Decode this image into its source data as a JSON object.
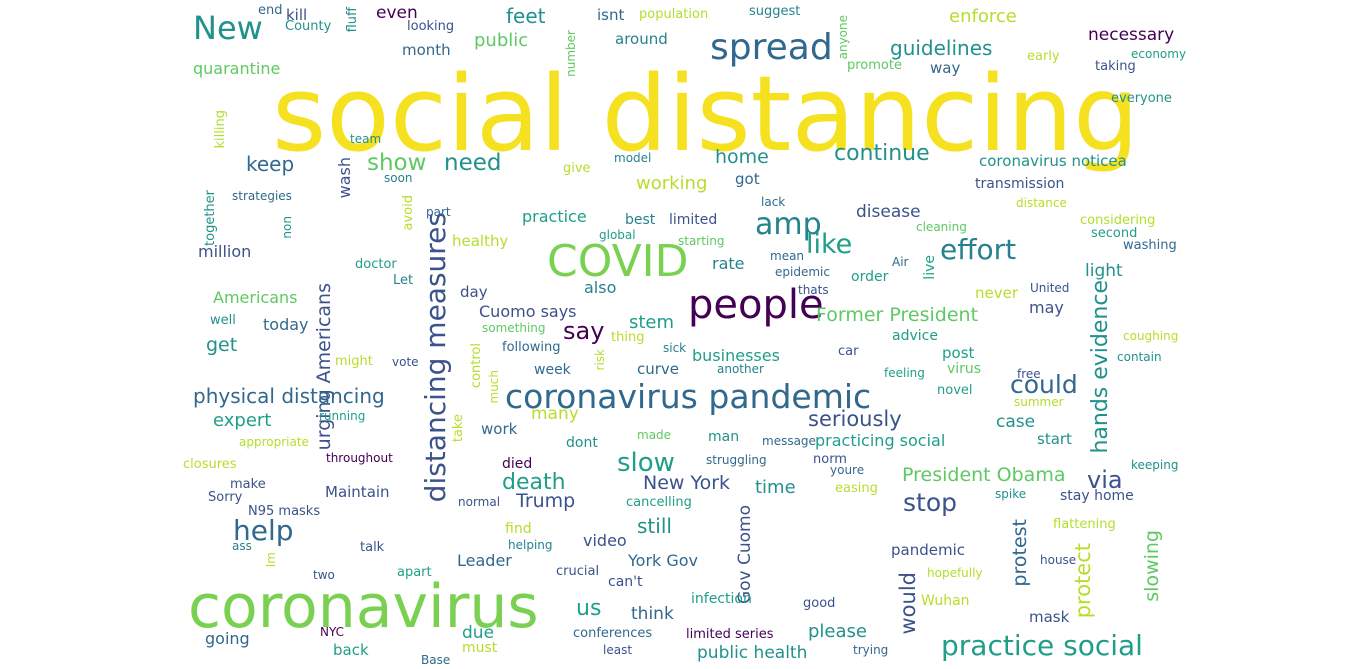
{
  "words": [
    {
      "t": "social distancing",
      "c": "#f5e11f"
    },
    {
      "t": "coronavirus",
      "c": "#7ad151"
    },
    {
      "t": "COVID",
      "c": "#7ad151"
    },
    {
      "t": "people",
      "c": "#440154"
    },
    {
      "t": "coronavirus pandemic",
      "c": "#31688e"
    },
    {
      "t": "distancing measures",
      "c": "#3b528b"
    },
    {
      "t": "spread",
      "c": "#31688e"
    },
    {
      "t": "New",
      "c": "#21918c"
    },
    {
      "t": "practice social",
      "c": "#1f9e89"
    },
    {
      "t": "amp",
      "c": "#26828e"
    },
    {
      "t": "effort",
      "c": "#26828e"
    },
    {
      "t": "like",
      "c": "#1f9e89"
    },
    {
      "t": "help",
      "c": "#31688e"
    },
    {
      "t": "slow",
      "c": "#1f9e89"
    },
    {
      "t": "stop",
      "c": "#3b528b"
    },
    {
      "t": "could",
      "c": "#31688e"
    },
    {
      "t": "continue",
      "c": "#21918c"
    },
    {
      "t": "show",
      "c": "#5ec962"
    },
    {
      "t": "need",
      "c": "#21918c"
    },
    {
      "t": "say",
      "c": "#440154"
    },
    {
      "t": "death",
      "c": "#1f9e89"
    },
    {
      "t": "via",
      "c": "#3b528b"
    },
    {
      "t": "hands evidence",
      "c": "#21918c"
    },
    {
      "t": "urging Americans",
      "c": "#3b528b"
    },
    {
      "t": "physical distancing",
      "c": "#31688e"
    },
    {
      "t": "seriously",
      "c": "#3b528b"
    },
    {
      "t": "Former President",
      "c": "#5ec962"
    },
    {
      "t": "President Obama",
      "c": "#5ec962"
    },
    {
      "t": "New York",
      "c": "#3b528b"
    },
    {
      "t": "Trump",
      "c": "#3b528b"
    },
    {
      "t": "still",
      "c": "#21918c"
    },
    {
      "t": "Gov Cuomo",
      "c": "#3b528b"
    },
    {
      "t": "would",
      "c": "#3b528b"
    },
    {
      "t": "protect",
      "c": "#b5de2b"
    },
    {
      "t": "protest",
      "c": "#31688e"
    },
    {
      "t": "slowing",
      "c": "#5ec962"
    },
    {
      "t": "guidelines",
      "c": "#21918c"
    },
    {
      "t": "feet",
      "c": "#21918c"
    },
    {
      "t": "enforce",
      "c": "#b5de2b"
    },
    {
      "t": "necessary",
      "c": "#440154"
    },
    {
      "t": "public",
      "c": "#5ec962"
    },
    {
      "t": "quarantine",
      "c": "#5ec962"
    },
    {
      "t": "even",
      "c": "#440154"
    },
    {
      "t": "kill",
      "c": "#3b528b"
    },
    {
      "t": "end",
      "c": "#31688e"
    },
    {
      "t": "County",
      "c": "#21918c"
    },
    {
      "t": "looking",
      "c": "#3b528b"
    },
    {
      "t": "isnt",
      "c": "#31688e"
    },
    {
      "t": "population",
      "c": "#b5de2b"
    },
    {
      "t": "suggest",
      "c": "#26828e"
    },
    {
      "t": "month",
      "c": "#31688e"
    },
    {
      "t": "around",
      "c": "#26828e"
    },
    {
      "t": "fluff",
      "c": "#21918c"
    },
    {
      "t": "number",
      "c": "#5ec962"
    },
    {
      "t": "anyone",
      "c": "#5ec962"
    },
    {
      "t": "promote",
      "c": "#5ec962"
    },
    {
      "t": "way",
      "c": "#31688e"
    },
    {
      "t": "early",
      "c": "#b5de2b"
    },
    {
      "t": "economy",
      "c": "#1f9e89"
    },
    {
      "t": "taking",
      "c": "#3b528b"
    },
    {
      "t": "everyone",
      "c": "#21918c"
    },
    {
      "t": "keep",
      "c": "#31688e"
    },
    {
      "t": "wash",
      "c": "#3b528b"
    },
    {
      "t": "killing",
      "c": "#b5de2b"
    },
    {
      "t": "team",
      "c": "#21918c"
    },
    {
      "t": "together",
      "c": "#21918c"
    },
    {
      "t": "strategies",
      "c": "#31688e"
    },
    {
      "t": "soon",
      "c": "#26828e"
    },
    {
      "t": "give",
      "c": "#b5de2b"
    },
    {
      "t": "model",
      "c": "#26828e"
    },
    {
      "t": "home",
      "c": "#21918c"
    },
    {
      "t": "got",
      "c": "#31688e"
    },
    {
      "t": "working",
      "c": "#b5de2b"
    },
    {
      "t": "coronavirus noticea",
      "c": "#21918c"
    },
    {
      "t": "transmission",
      "c": "#3b528b"
    },
    {
      "t": "practice",
      "c": "#1f9e89"
    },
    {
      "t": "part",
      "c": "#31688e"
    },
    {
      "t": "best",
      "c": "#26828e"
    },
    {
      "t": "limited",
      "c": "#3b528b"
    },
    {
      "t": "lack",
      "c": "#31688e"
    },
    {
      "t": "disease",
      "c": "#3b528b"
    },
    {
      "t": "cleaning",
      "c": "#5ec962"
    },
    {
      "t": "distance",
      "c": "#b5de2b"
    },
    {
      "t": "considering",
      "c": "#b5de2b"
    },
    {
      "t": "second",
      "c": "#1f9e89"
    },
    {
      "t": "washing",
      "c": "#31688e"
    },
    {
      "t": "avoid",
      "c": "#b5de2b"
    },
    {
      "t": "non",
      "c": "#21918c"
    },
    {
      "t": "global",
      "c": "#1f9e89"
    },
    {
      "t": "starting",
      "c": "#5ec962"
    },
    {
      "t": "healthy",
      "c": "#b5de2b"
    },
    {
      "t": "million",
      "c": "#3b528b"
    },
    {
      "t": "doctor",
      "c": "#1f9e89"
    },
    {
      "t": "rate",
      "c": "#26828e"
    },
    {
      "t": "mean",
      "c": "#31688e"
    },
    {
      "t": "epidemic",
      "c": "#31688e"
    },
    {
      "t": "order",
      "c": "#1f9e89"
    },
    {
      "t": "Air",
      "c": "#31688e"
    },
    {
      "t": "live",
      "c": "#1f9e89"
    },
    {
      "t": "light",
      "c": "#21918c"
    },
    {
      "t": "thats",
      "c": "#3b528b"
    },
    {
      "t": "never",
      "c": "#b5de2b"
    },
    {
      "t": "United",
      "c": "#3b528b"
    },
    {
      "t": "Let",
      "c": "#26828e"
    },
    {
      "t": "day",
      "c": "#3b528b"
    },
    {
      "t": "also",
      "c": "#26828e"
    },
    {
      "t": "Americans",
      "c": "#5ec962"
    },
    {
      "t": "may",
      "c": "#3b528b"
    },
    {
      "t": "well",
      "c": "#21918c"
    },
    {
      "t": "today",
      "c": "#31688e"
    },
    {
      "t": "Cuomo says",
      "c": "#3b528b"
    },
    {
      "t": "stem",
      "c": "#1f9e89"
    },
    {
      "t": "something",
      "c": "#5ec962"
    },
    {
      "t": "thing",
      "c": "#b5de2b"
    },
    {
      "t": "advice",
      "c": "#1f9e89"
    },
    {
      "t": "coughing",
      "c": "#b5de2b"
    },
    {
      "t": "get",
      "c": "#21918c"
    },
    {
      "t": "following",
      "c": "#31688e"
    },
    {
      "t": "sick",
      "c": "#26828e"
    },
    {
      "t": "contain",
      "c": "#21918c"
    },
    {
      "t": "businesses",
      "c": "#1f9e89"
    },
    {
      "t": "car",
      "c": "#3b528b"
    },
    {
      "t": "post",
      "c": "#1f9e89"
    },
    {
      "t": "might",
      "c": "#b5de2b"
    },
    {
      "t": "vote",
      "c": "#3b528b"
    },
    {
      "t": "control",
      "c": "#b5de2b"
    },
    {
      "t": "risk",
      "c": "#b5de2b"
    },
    {
      "t": "week",
      "c": "#31688e"
    },
    {
      "t": "curve",
      "c": "#31688e"
    },
    {
      "t": "another",
      "c": "#26828e"
    },
    {
      "t": "feeling",
      "c": "#1f9e89"
    },
    {
      "t": "virus",
      "c": "#5ec962"
    },
    {
      "t": "free",
      "c": "#3b528b"
    },
    {
      "t": "novel",
      "c": "#1f9e89"
    },
    {
      "t": "summer",
      "c": "#b5de2b"
    },
    {
      "t": "expert",
      "c": "#1f9e89"
    },
    {
      "t": "running",
      "c": "#1f9e89"
    },
    {
      "t": "much",
      "c": "#b5de2b"
    },
    {
      "t": "many",
      "c": "#b5de2b"
    },
    {
      "t": "work",
      "c": "#31688e"
    },
    {
      "t": "dont",
      "c": "#21918c"
    },
    {
      "t": "case",
      "c": "#21918c"
    },
    {
      "t": "start",
      "c": "#21918c"
    },
    {
      "t": "practicing social",
      "c": "#1f9e89"
    },
    {
      "t": "appropriate",
      "c": "#b5de2b"
    },
    {
      "t": "take",
      "c": "#b5de2b"
    },
    {
      "t": "made",
      "c": "#5ec962"
    },
    {
      "t": "man",
      "c": "#21918c"
    },
    {
      "t": "message",
      "c": "#31688e"
    },
    {
      "t": "closures",
      "c": "#b5de2b"
    },
    {
      "t": "throughout",
      "c": "#440154"
    },
    {
      "t": "died",
      "c": "#440154"
    },
    {
      "t": "struggling",
      "c": "#31688e"
    },
    {
      "t": "norm",
      "c": "#3b528b"
    },
    {
      "t": "youre",
      "c": "#31688e"
    },
    {
      "t": "keeping",
      "c": "#21918c"
    },
    {
      "t": "make",
      "c": "#3b528b"
    },
    {
      "t": "easing",
      "c": "#b5de2b"
    },
    {
      "t": "Sorry",
      "c": "#3b528b"
    },
    {
      "t": "Maintain",
      "c": "#3b528b"
    },
    {
      "t": "time",
      "c": "#21918c"
    },
    {
      "t": "spike",
      "c": "#21918c"
    },
    {
      "t": "stay home",
      "c": "#3b528b"
    },
    {
      "t": "N95 masks",
      "c": "#3b528b"
    },
    {
      "t": "normal",
      "c": "#3b528b"
    },
    {
      "t": "cancelling",
      "c": "#1f9e89"
    },
    {
      "t": "find",
      "c": "#b5de2b"
    },
    {
      "t": "flattening",
      "c": "#b5de2b"
    },
    {
      "t": "ass",
      "c": "#26828e"
    },
    {
      "t": "talk",
      "c": "#3b528b"
    },
    {
      "t": "helping",
      "c": "#26828e"
    },
    {
      "t": "video",
      "c": "#3b528b"
    },
    {
      "t": "Im",
      "c": "#b5de2b"
    },
    {
      "t": "pandemic",
      "c": "#3b528b"
    },
    {
      "t": "Leader",
      "c": "#31688e"
    },
    {
      "t": "York Gov",
      "c": "#31688e"
    },
    {
      "t": "house",
      "c": "#3b528b"
    },
    {
      "t": "two",
      "c": "#3b528b"
    },
    {
      "t": "apart",
      "c": "#1f9e89"
    },
    {
      "t": "crucial",
      "c": "#3b528b"
    },
    {
      "t": "hopefully",
      "c": "#b5de2b"
    },
    {
      "t": "can't",
      "c": "#3b528b"
    },
    {
      "t": "us",
      "c": "#1f9e89"
    },
    {
      "t": "Wuhan",
      "c": "#b5de2b"
    },
    {
      "t": "infection",
      "c": "#1f9e89"
    },
    {
      "t": "think",
      "c": "#31688e"
    },
    {
      "t": "good",
      "c": "#3b528b"
    },
    {
      "t": "mask",
      "c": "#3b528b"
    },
    {
      "t": "going",
      "c": "#31688e"
    },
    {
      "t": "NYC",
      "c": "#440154"
    },
    {
      "t": "due",
      "c": "#1f9e89"
    },
    {
      "t": "conferences",
      "c": "#31688e"
    },
    {
      "t": "limited series",
      "c": "#440154"
    },
    {
      "t": "please",
      "c": "#21918c"
    },
    {
      "t": "back",
      "c": "#1f9e89"
    },
    {
      "t": "must",
      "c": "#b5de2b"
    },
    {
      "t": "least",
      "c": "#3b528b"
    },
    {
      "t": "public health",
      "c": "#21918c"
    },
    {
      "t": "trying",
      "c": "#31688e"
    },
    {
      "t": "Base",
      "c": "#31688e"
    }
  ]
}
